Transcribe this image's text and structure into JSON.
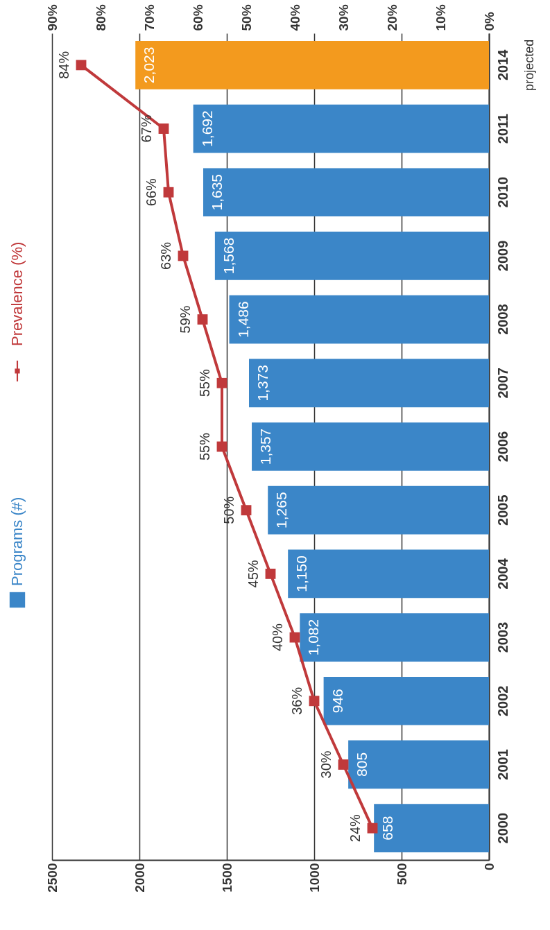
{
  "chart_data": {
    "type": "bar",
    "orientation": "horizontal",
    "categories": [
      "2014",
      "2011",
      "2010",
      "2009",
      "2008",
      "2007",
      "2006",
      "2005",
      "2004",
      "2003",
      "2002",
      "2001",
      "2000"
    ],
    "series": [
      {
        "name": "Programs (#)",
        "color": "#3b86c8",
        "colors": [
          "#f39a1e",
          "#3b86c8",
          "#3b86c8",
          "#3b86c8",
          "#3b86c8",
          "#3b86c8",
          "#3b86c8",
          "#3b86c8",
          "#3b86c8",
          "#3b86c8",
          "#3b86c8",
          "#3b86c8",
          "#3b86c8"
        ],
        "values": [
          2023,
          1692,
          1635,
          1568,
          1486,
          1373,
          1357,
          1265,
          1150,
          1082,
          946,
          805,
          658
        ],
        "value_labels": [
          "2,023",
          "1,692",
          "1,635",
          "1,568",
          "1,486",
          "1,373",
          "1,357",
          "1,265",
          "1,150",
          "1,082",
          "946",
          "805",
          "658"
        ]
      },
      {
        "name": "Prevalence (%)",
        "type": "line",
        "axis": "x2",
        "color": "#c0393b",
        "marker": "square",
        "values": [
          84,
          67,
          66,
          63,
          59,
          55,
          55,
          50,
          45,
          40,
          36,
          30,
          24
        ],
        "value_labels": [
          "84%",
          "67%",
          "66%",
          "63%",
          "59%",
          "55%",
          "55%",
          "50%",
          "45%",
          "40%",
          "36%",
          "30%",
          "24%"
        ]
      }
    ],
    "xlim": [
      2500,
      0
    ],
    "xticks": [
      2500,
      2000,
      1500,
      1000,
      500,
      0
    ],
    "x2lim": [
      90,
      0
    ],
    "x2ticks": [
      {
        "value": 90,
        "label": "90%"
      },
      {
        "value": 80,
        "label": "80%"
      },
      {
        "value": 70,
        "label": "70%"
      },
      {
        "value": 60,
        "label": "60%"
      },
      {
        "value": 50,
        "label": "50%"
      },
      {
        "value": 40,
        "label": "40%"
      },
      {
        "value": 30,
        "label": "30%"
      },
      {
        "value": 20,
        "label": "20%"
      },
      {
        "value": 10,
        "label": "10%"
      },
      {
        "value": 0,
        "label": "0%"
      }
    ],
    "grid": "x",
    "legend": "left",
    "annotations": [
      "projected"
    ]
  }
}
